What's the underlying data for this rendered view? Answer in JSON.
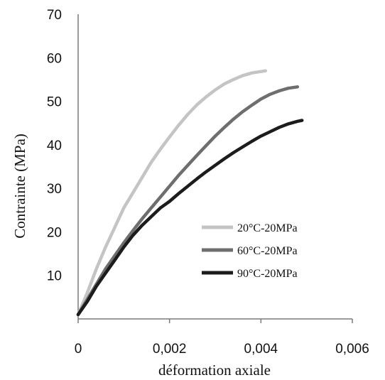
{
  "chart_data": {
    "type": "line",
    "xlabel": "déformation axiale",
    "ylabel": "Contrainte (MPa)",
    "xlim": [
      0,
      0.006
    ],
    "ylim": [
      0,
      70
    ],
    "x_ticks": [
      0,
      0.002,
      0.004,
      0.006
    ],
    "x_tick_labels": [
      "0",
      "0,002",
      "0,004",
      "0,006"
    ],
    "y_ticks": [
      10,
      20,
      30,
      40,
      50,
      60,
      70
    ],
    "y_tick_labels": [
      "10",
      "20",
      "30",
      "40",
      "50",
      "60",
      "70"
    ],
    "grid": false,
    "legend_position": "center-right",
    "series": [
      {
        "name": "20°C-20MPa",
        "color": "#c4c4c4",
        "points": [
          [
            0,
            1
          ],
          [
            0.0002,
            6
          ],
          [
            0.0004,
            11.5
          ],
          [
            0.0006,
            16.5
          ],
          [
            0.0008,
            21
          ],
          [
            0.001,
            25.5
          ],
          [
            0.0012,
            29
          ],
          [
            0.0014,
            32.5
          ],
          [
            0.0016,
            36
          ],
          [
            0.0018,
            39
          ],
          [
            0.002,
            41.8
          ],
          [
            0.0022,
            44.5
          ],
          [
            0.0024,
            47
          ],
          [
            0.0026,
            49.2
          ],
          [
            0.0028,
            51
          ],
          [
            0.003,
            52.6
          ],
          [
            0.0032,
            54
          ],
          [
            0.0034,
            55
          ],
          [
            0.0036,
            55.9
          ],
          [
            0.0038,
            56.5
          ],
          [
            0.0041,
            57
          ]
        ]
      },
      {
        "name": "60°C-20MPa",
        "color": "#6e6e6e",
        "points": [
          [
            0,
            1
          ],
          [
            0.0002,
            4.5
          ],
          [
            0.0004,
            8
          ],
          [
            0.0006,
            11.5
          ],
          [
            0.0008,
            14.5
          ],
          [
            0.001,
            17.5
          ],
          [
            0.0012,
            20.3
          ],
          [
            0.0014,
            23
          ],
          [
            0.0016,
            25.5
          ],
          [
            0.0018,
            28
          ],
          [
            0.002,
            30.5
          ],
          [
            0.0022,
            33
          ],
          [
            0.0024,
            35.3
          ],
          [
            0.0026,
            37.6
          ],
          [
            0.0028,
            39.8
          ],
          [
            0.003,
            42
          ],
          [
            0.0032,
            44
          ],
          [
            0.0034,
            45.9
          ],
          [
            0.0036,
            47.6
          ],
          [
            0.0038,
            49.1
          ],
          [
            0.004,
            50.5
          ],
          [
            0.0042,
            51.6
          ],
          [
            0.0044,
            52.4
          ],
          [
            0.0046,
            53
          ],
          [
            0.0048,
            53.3
          ]
        ]
      },
      {
        "name": "90°C-20MPa",
        "color": "#1c1c1c",
        "points": [
          [
            0,
            1
          ],
          [
            0.0002,
            4
          ],
          [
            0.0004,
            7.5
          ],
          [
            0.0006,
            10.5
          ],
          [
            0.0008,
            13.5
          ],
          [
            0.001,
            16.5
          ],
          [
            0.0012,
            19.2
          ],
          [
            0.0014,
            21.5
          ],
          [
            0.0016,
            23.5
          ],
          [
            0.0018,
            25.5
          ],
          [
            0.002,
            27
          ],
          [
            0.0022,
            28.8
          ],
          [
            0.0024,
            30.5
          ],
          [
            0.0026,
            32.2
          ],
          [
            0.0028,
            33.8
          ],
          [
            0.003,
            35.3
          ],
          [
            0.0032,
            36.8
          ],
          [
            0.0034,
            38.2
          ],
          [
            0.0036,
            39.5
          ],
          [
            0.0038,
            40.8
          ],
          [
            0.004,
            42
          ],
          [
            0.0042,
            43
          ],
          [
            0.0044,
            44
          ],
          [
            0.0046,
            44.8
          ],
          [
            0.0048,
            45.4
          ],
          [
            0.0049,
            45.6
          ]
        ]
      }
    ]
  }
}
